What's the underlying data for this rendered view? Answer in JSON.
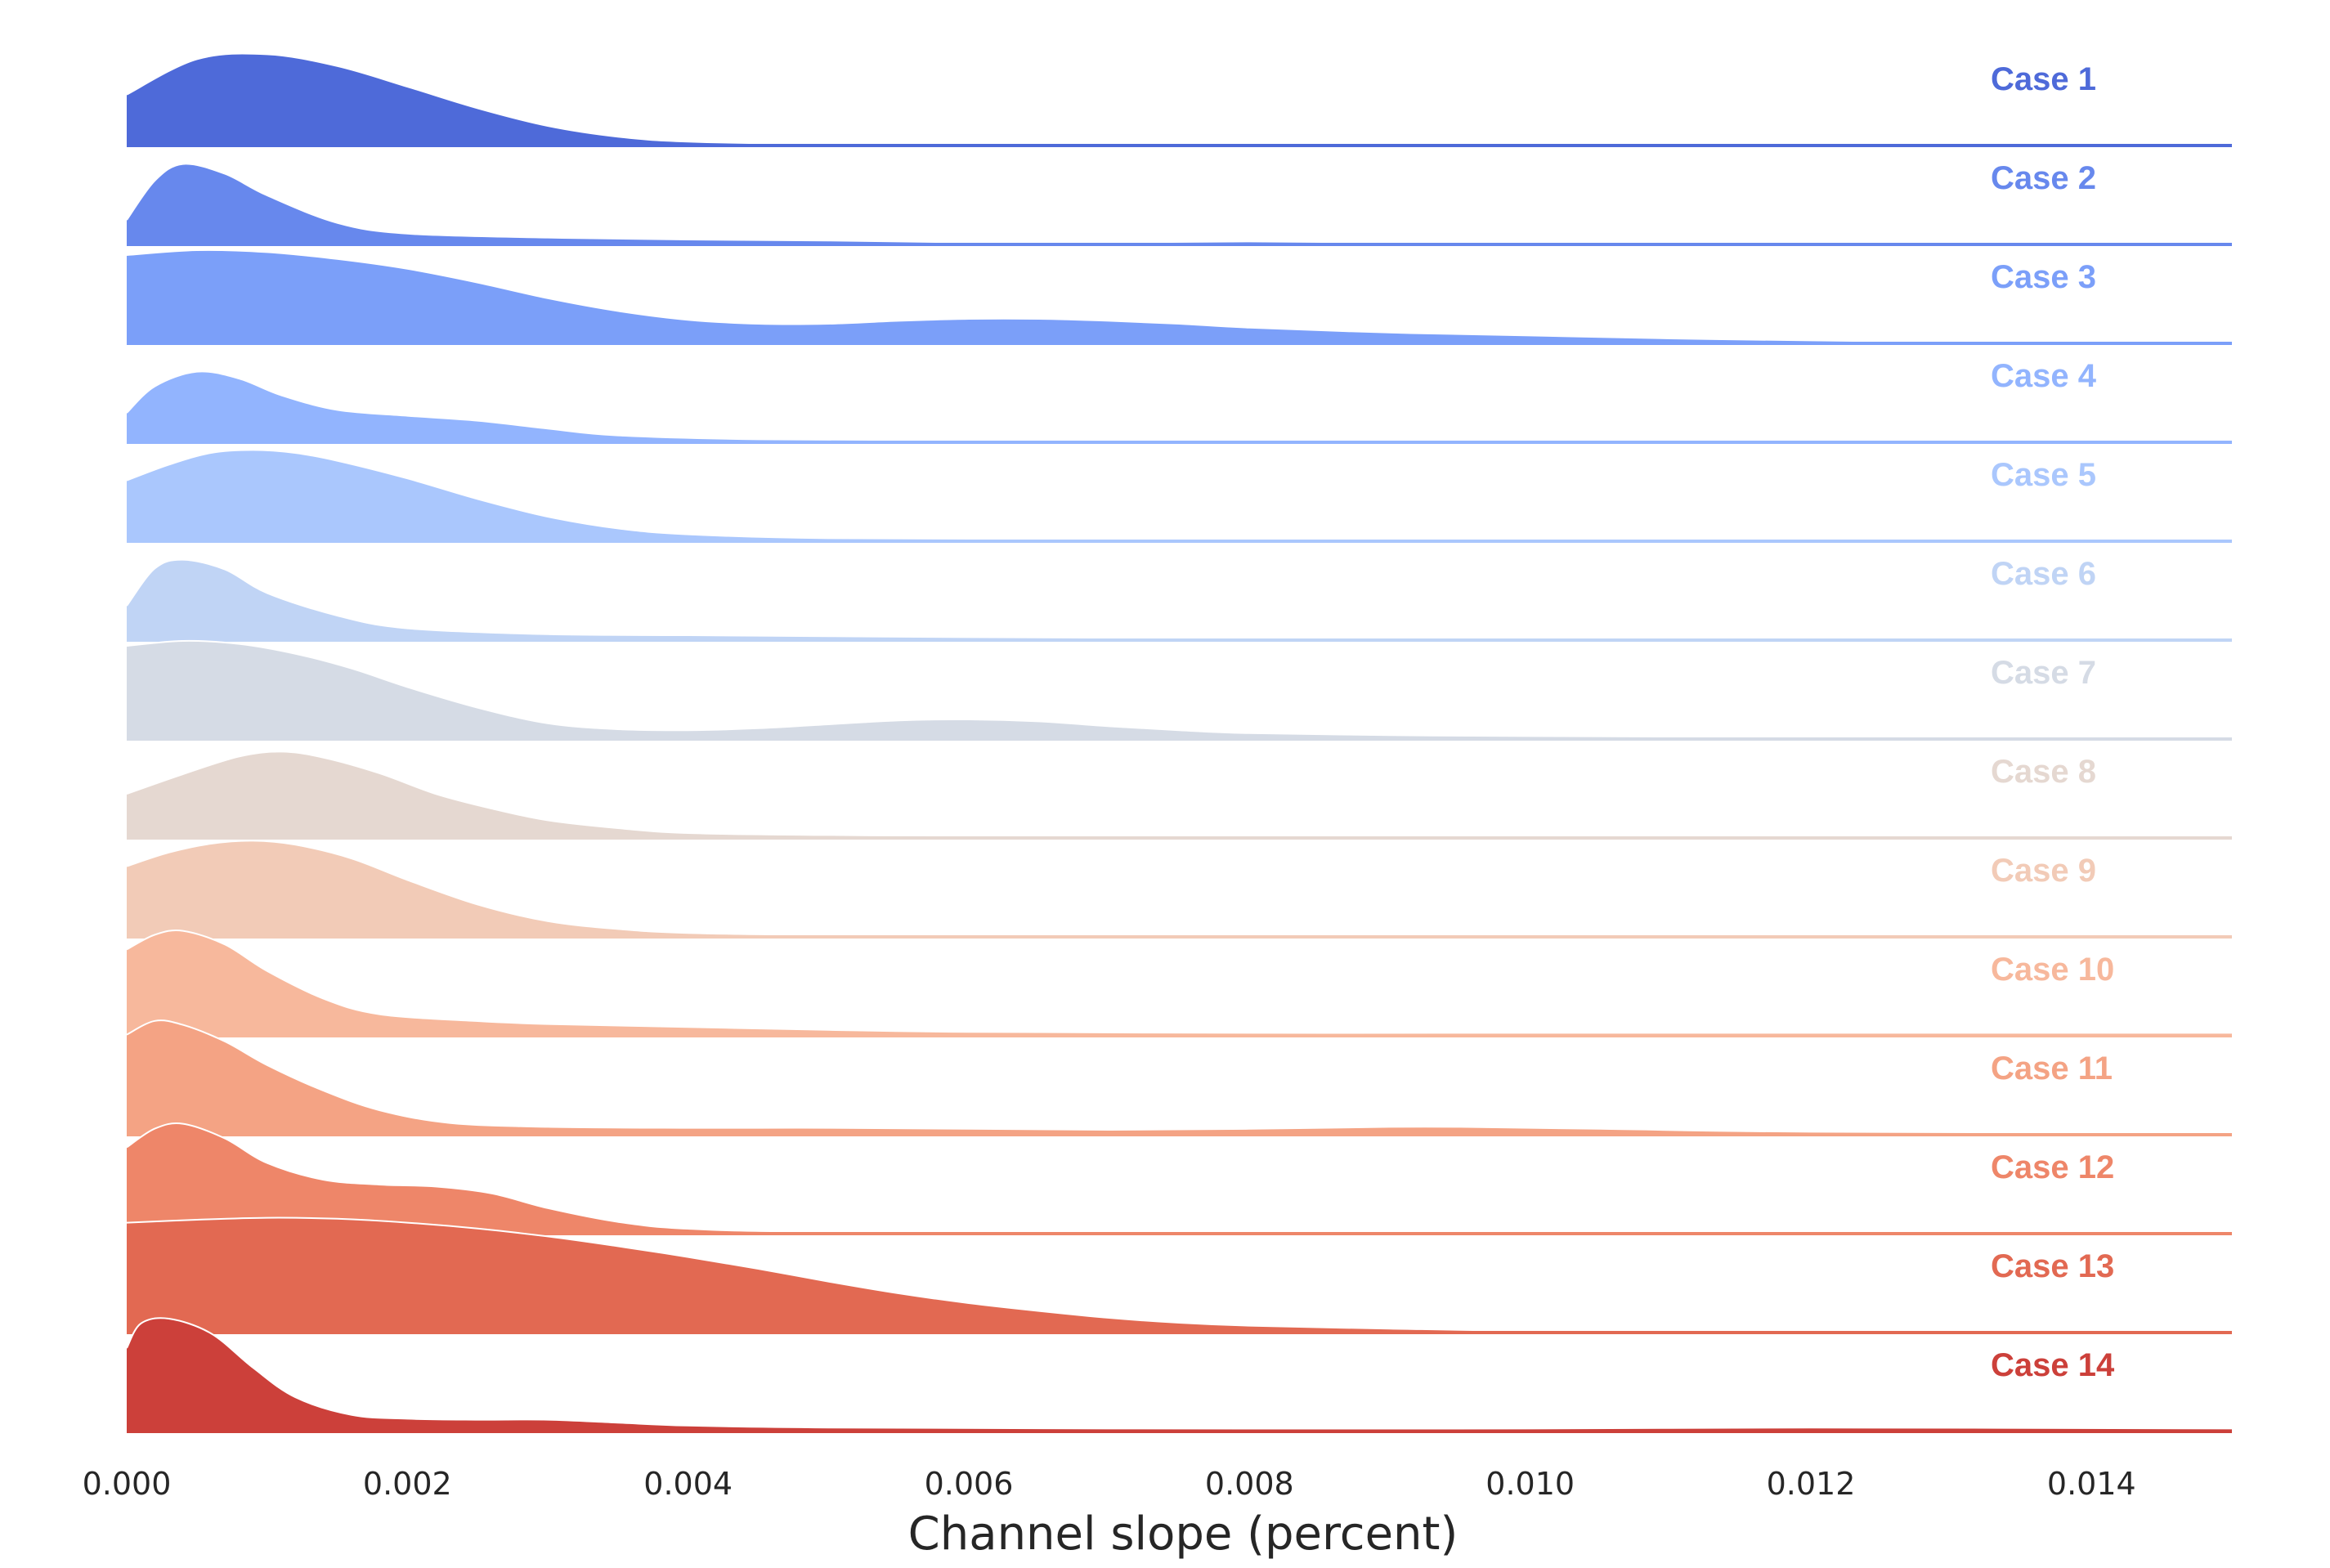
{
  "chart_data": {
    "type": "area",
    "subtype": "ridgeline-density",
    "xlabel": "Channel slope (percent)",
    "xlim": [
      0,
      0.015
    ],
    "x_ticks": [
      0.0,
      0.002,
      0.004,
      0.006,
      0.008,
      0.01,
      0.012,
      0.014
    ],
    "x_tick_labels": [
      "0.000",
      "0.002",
      "0.004",
      "0.006",
      "0.008",
      "0.010",
      "0.012",
      "0.014"
    ],
    "grid": false,
    "legend": "none",
    "series": [
      {
        "name": "Case 1",
        "color": "#4e6ad9",
        "points": [
          [
            0,
            0.52
          ],
          [
            0.0005,
            0.88
          ],
          [
            0.001,
            0.93
          ],
          [
            0.0015,
            0.81
          ],
          [
            0.002,
            0.6
          ],
          [
            0.0025,
            0.38
          ],
          [
            0.003,
            0.2
          ],
          [
            0.0035,
            0.09
          ],
          [
            0.004,
            0.04
          ],
          [
            0.005,
            0.015
          ],
          [
            0.007,
            0.01
          ],
          [
            0.01,
            0.01
          ],
          [
            0.015,
            0.02
          ]
        ]
      },
      {
        "name": "Case 2",
        "color": "#6788ed",
        "points": [
          [
            0,
            0.25
          ],
          [
            0.0002,
            0.65
          ],
          [
            0.0004,
            0.82
          ],
          [
            0.0007,
            0.72
          ],
          [
            0.001,
            0.5
          ],
          [
            0.0015,
            0.22
          ],
          [
            0.002,
            0.11
          ],
          [
            0.003,
            0.07
          ],
          [
            0.004,
            0.05
          ],
          [
            0.005,
            0.04
          ],
          [
            0.006,
            0.02
          ],
          [
            0.007,
            0.02
          ],
          [
            0.008,
            0.03
          ],
          [
            0.009,
            0.02
          ],
          [
            0.01,
            0.01
          ],
          [
            0.015,
            0.02
          ]
        ]
      },
      {
        "name": "Case 3",
        "color": "#7b9ff9",
        "points": [
          [
            0,
            0.9
          ],
          [
            0.0005,
            0.95
          ],
          [
            0.001,
            0.93
          ],
          [
            0.0015,
            0.86
          ],
          [
            0.002,
            0.76
          ],
          [
            0.0025,
            0.62
          ],
          [
            0.003,
            0.46
          ],
          [
            0.0035,
            0.33
          ],
          [
            0.004,
            0.24
          ],
          [
            0.0045,
            0.2
          ],
          [
            0.005,
            0.2
          ],
          [
            0.0055,
            0.23
          ],
          [
            0.006,
            0.25
          ],
          [
            0.0065,
            0.25
          ],
          [
            0.007,
            0.23
          ],
          [
            0.0075,
            0.2
          ],
          [
            0.008,
            0.16
          ],
          [
            0.009,
            0.11
          ],
          [
            0.01,
            0.08
          ],
          [
            0.011,
            0.05
          ],
          [
            0.012,
            0.03
          ],
          [
            0.0135,
            0.01
          ],
          [
            0.015,
            0.02
          ]
        ]
      },
      {
        "name": "Case 4",
        "color": "#92b4fe",
        "points": [
          [
            0,
            0.3
          ],
          [
            0.0002,
            0.57
          ],
          [
            0.0005,
            0.72
          ],
          [
            0.0008,
            0.65
          ],
          [
            0.0011,
            0.48
          ],
          [
            0.0015,
            0.33
          ],
          [
            0.002,
            0.27
          ],
          [
            0.0025,
            0.22
          ],
          [
            0.003,
            0.14
          ],
          [
            0.0035,
            0.07
          ],
          [
            0.0045,
            0.03
          ],
          [
            0.006,
            0.02
          ],
          [
            0.008,
            0.02
          ],
          [
            0.01,
            0.01
          ],
          [
            0.015,
            0.02
          ]
        ]
      },
      {
        "name": "Case 5",
        "color": "#aac7fd",
        "points": [
          [
            0,
            0.62
          ],
          [
            0.0003,
            0.78
          ],
          [
            0.0006,
            0.9
          ],
          [
            0.0009,
            0.93
          ],
          [
            0.0012,
            0.9
          ],
          [
            0.0015,
            0.82
          ],
          [
            0.002,
            0.64
          ],
          [
            0.0025,
            0.43
          ],
          [
            0.003,
            0.25
          ],
          [
            0.0035,
            0.13
          ],
          [
            0.004,
            0.07
          ],
          [
            0.005,
            0.03
          ],
          [
            0.007,
            0.02
          ],
          [
            0.01,
            0.01
          ],
          [
            0.015,
            0.02
          ]
        ]
      },
      {
        "name": "Case 6",
        "color": "#c0d4f5",
        "points": [
          [
            0,
            0.35
          ],
          [
            0.0002,
            0.73
          ],
          [
            0.0004,
            0.82
          ],
          [
            0.0007,
            0.72
          ],
          [
            0.001,
            0.48
          ],
          [
            0.0015,
            0.25
          ],
          [
            0.002,
            0.12
          ],
          [
            0.003,
            0.06
          ],
          [
            0.004,
            0.05
          ],
          [
            0.005,
            0.04
          ],
          [
            0.006,
            0.03
          ],
          [
            0.008,
            0.02
          ],
          [
            0.01,
            0.02
          ],
          [
            0.015,
            0.02
          ]
        ]
      },
      {
        "name": "Case 7",
        "color": "#d5dbe5",
        "points": [
          [
            0,
            0.95
          ],
          [
            0.0004,
            1.0
          ],
          [
            0.0008,
            0.97
          ],
          [
            0.0012,
            0.87
          ],
          [
            0.0016,
            0.72
          ],
          [
            0.002,
            0.53
          ],
          [
            0.0025,
            0.32
          ],
          [
            0.003,
            0.16
          ],
          [
            0.0035,
            0.1
          ],
          [
            0.004,
            0.09
          ],
          [
            0.0045,
            0.11
          ],
          [
            0.005,
            0.15
          ],
          [
            0.0055,
            0.19
          ],
          [
            0.006,
            0.2
          ],
          [
            0.0065,
            0.18
          ],
          [
            0.007,
            0.13
          ],
          [
            0.0075,
            0.09
          ],
          [
            0.008,
            0.06
          ],
          [
            0.009,
            0.04
          ],
          [
            0.01,
            0.03
          ],
          [
            0.012,
            0.02
          ],
          [
            0.015,
            0.02
          ]
        ]
      },
      {
        "name": "Case 8",
        "color": "#e5d8d1",
        "points": [
          [
            0,
            0.45
          ],
          [
            0.0004,
            0.65
          ],
          [
            0.0008,
            0.83
          ],
          [
            0.0011,
            0.88
          ],
          [
            0.0014,
            0.82
          ],
          [
            0.0018,
            0.66
          ],
          [
            0.0022,
            0.45
          ],
          [
            0.0026,
            0.3
          ],
          [
            0.003,
            0.18
          ],
          [
            0.0035,
            0.1
          ],
          [
            0.004,
            0.05
          ],
          [
            0.005,
            0.03
          ],
          [
            0.007,
            0.02
          ],
          [
            0.015,
            0.02
          ]
        ]
      },
      {
        "name": "Case 9",
        "color": "#f2cbb7",
        "points": [
          [
            0,
            0.72
          ],
          [
            0.0003,
            0.86
          ],
          [
            0.0006,
            0.95
          ],
          [
            0.0009,
            0.98
          ],
          [
            0.0012,
            0.94
          ],
          [
            0.0016,
            0.8
          ],
          [
            0.002,
            0.58
          ],
          [
            0.0025,
            0.33
          ],
          [
            0.003,
            0.16
          ],
          [
            0.0035,
            0.08
          ],
          [
            0.004,
            0.04
          ],
          [
            0.005,
            0.02
          ],
          [
            0.007,
            0.02
          ],
          [
            0.015,
            0.02
          ]
        ]
      },
      {
        "name": "Case 10",
        "color": "#f7b89c",
        "points": [
          [
            0,
            0.88
          ],
          [
            0.0002,
            1.03
          ],
          [
            0.0004,
            1.07
          ],
          [
            0.0007,
            0.93
          ],
          [
            0.001,
            0.66
          ],
          [
            0.0014,
            0.38
          ],
          [
            0.0018,
            0.22
          ],
          [
            0.0025,
            0.15
          ],
          [
            0.003,
            0.12
          ],
          [
            0.004,
            0.09
          ],
          [
            0.005,
            0.06
          ],
          [
            0.006,
            0.04
          ],
          [
            0.008,
            0.03
          ],
          [
            0.01,
            0.03
          ],
          [
            0.015,
            0.03
          ]
        ]
      },
      {
        "name": "Case 11",
        "color": "#f4a384",
        "points": [
          [
            0,
            1.02
          ],
          [
            0.0002,
            1.16
          ],
          [
            0.0004,
            1.12
          ],
          [
            0.0007,
            0.95
          ],
          [
            0.001,
            0.71
          ],
          [
            0.0014,
            0.45
          ],
          [
            0.0018,
            0.25
          ],
          [
            0.0023,
            0.12
          ],
          [
            0.003,
            0.08
          ],
          [
            0.004,
            0.07
          ],
          [
            0.005,
            0.07
          ],
          [
            0.006,
            0.06
          ],
          [
            0.007,
            0.05
          ],
          [
            0.008,
            0.06
          ],
          [
            0.009,
            0.08
          ],
          [
            0.0095,
            0.08
          ],
          [
            0.0105,
            0.06
          ],
          [
            0.012,
            0.03
          ],
          [
            0.015,
            0.02
          ]
        ]
      },
      {
        "name": "Case 12",
        "color": "#ee8669",
        "points": [
          [
            0,
            0.88
          ],
          [
            0.0002,
            1.07
          ],
          [
            0.0004,
            1.12
          ],
          [
            0.0007,
            0.97
          ],
          [
            0.001,
            0.72
          ],
          [
            0.0014,
            0.55
          ],
          [
            0.0018,
            0.5
          ],
          [
            0.0022,
            0.48
          ],
          [
            0.0026,
            0.41
          ],
          [
            0.003,
            0.26
          ],
          [
            0.0035,
            0.12
          ],
          [
            0.004,
            0.05
          ],
          [
            0.005,
            0.02
          ],
          [
            0.008,
            0.02
          ],
          [
            0.015,
            0.02
          ]
        ]
      },
      {
        "name": "Case 13",
        "color": "#e26952",
        "points": [
          [
            0,
            1.12
          ],
          [
            0.0005,
            1.15
          ],
          [
            0.001,
            1.17
          ],
          [
            0.0015,
            1.16
          ],
          [
            0.002,
            1.12
          ],
          [
            0.0025,
            1.06
          ],
          [
            0.003,
            0.98
          ],
          [
            0.0035,
            0.88
          ],
          [
            0.004,
            0.77
          ],
          [
            0.0045,
            0.65
          ],
          [
            0.005,
            0.52
          ],
          [
            0.0055,
            0.4
          ],
          [
            0.006,
            0.3
          ],
          [
            0.0065,
            0.22
          ],
          [
            0.007,
            0.15
          ],
          [
            0.0075,
            0.1
          ],
          [
            0.008,
            0.07
          ],
          [
            0.009,
            0.04
          ],
          [
            0.01,
            0.02
          ],
          [
            0.012,
            0.02
          ],
          [
            0.015,
            0.02
          ]
        ]
      },
      {
        "name": "Case 14",
        "color": "#cc403a",
        "points": [
          [
            0,
            0.85
          ],
          [
            0.0001,
            1.1
          ],
          [
            0.0003,
            1.15
          ],
          [
            0.0006,
            1.0
          ],
          [
            0.0009,
            0.65
          ],
          [
            0.0012,
            0.35
          ],
          [
            0.0016,
            0.17
          ],
          [
            0.002,
            0.13
          ],
          [
            0.0025,
            0.12
          ],
          [
            0.003,
            0.12
          ],
          [
            0.0035,
            0.09
          ],
          [
            0.004,
            0.06
          ],
          [
            0.005,
            0.04
          ],
          [
            0.007,
            0.03
          ],
          [
            0.01,
            0.03
          ],
          [
            0.012,
            0.04
          ],
          [
            0.015,
            0.03
          ]
        ]
      }
    ]
  }
}
